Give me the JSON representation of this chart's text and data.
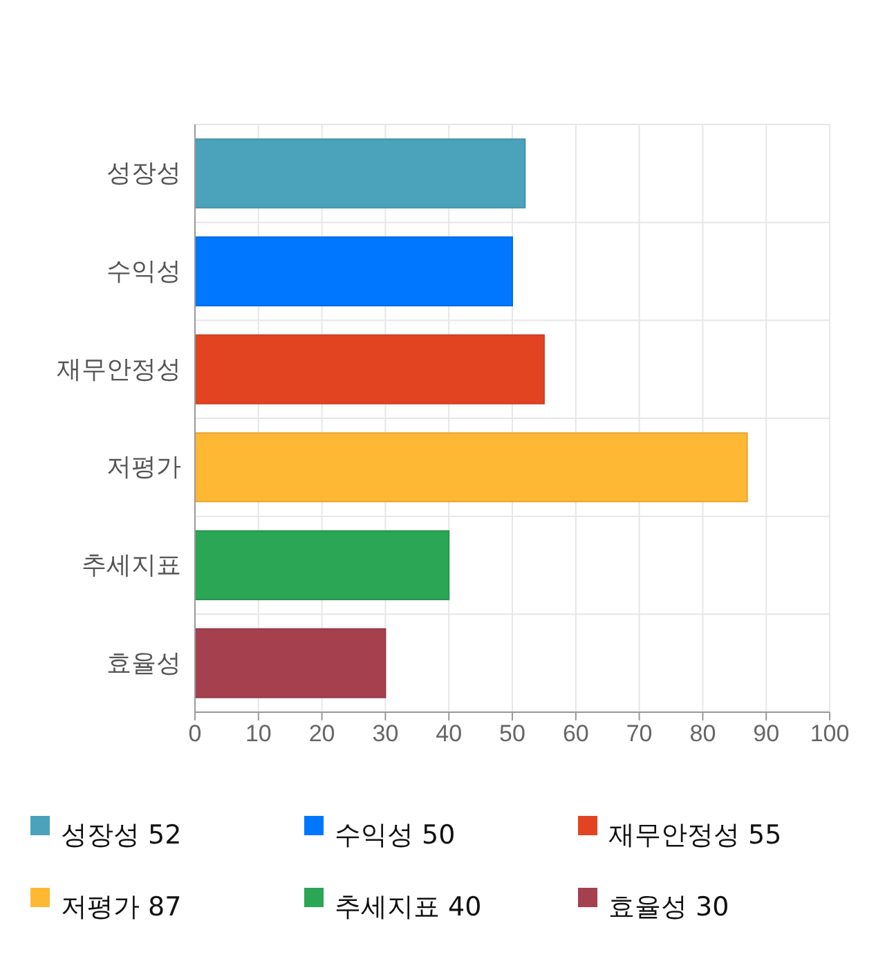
{
  "chart_data": {
    "type": "bar",
    "orientation": "horizontal",
    "stacked": true,
    "categories": [
      "성장성",
      "수익성",
      "재무안정성",
      "저평가",
      "추세지표",
      "효율성"
    ],
    "series": [
      {
        "name": "성장성 52",
        "color": "#4aa2bb",
        "values": [
          52,
          null,
          null,
          null,
          null,
          null
        ]
      },
      {
        "name": "수익성 50",
        "color": "#0077ff",
        "values": [
          null,
          50,
          null,
          null,
          null,
          null
        ]
      },
      {
        "name": "재무안정성 55",
        "color": "#e24422",
        "values": [
          null,
          null,
          55,
          null,
          null,
          null
        ]
      },
      {
        "name": "저평가 87",
        "color": "#ffb833",
        "values": [
          null,
          null,
          null,
          87,
          null,
          null
        ]
      },
      {
        "name": "추세지표 40",
        "color": "#2aa655",
        "values": [
          null,
          null,
          null,
          null,
          40,
          null
        ]
      },
      {
        "name": "효율성 30",
        "color": "#a5404f",
        "values": [
          null,
          null,
          null,
          null,
          null,
          30
        ]
      }
    ],
    "xlim": [
      0,
      100
    ],
    "xticks": [
      0,
      10,
      20,
      30,
      40,
      50,
      60,
      70,
      80,
      90,
      100
    ],
    "grid": true,
    "legend": "bottom"
  }
}
